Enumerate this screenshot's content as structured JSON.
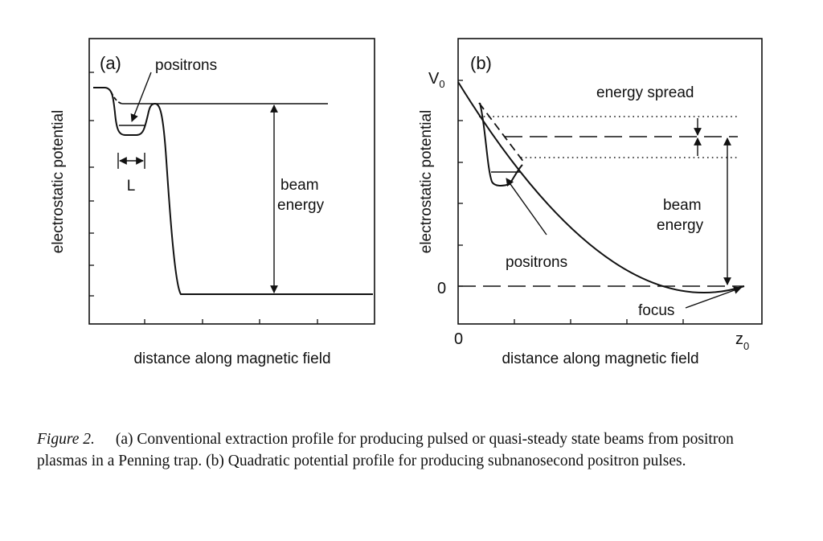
{
  "panels": {
    "a": {
      "label": "(a)",
      "ylabel": "electrostatic potential",
      "xlabel": "distance along magnetic field",
      "annotations": {
        "positrons": "positrons",
        "length": "L",
        "beam_energy_line1": "beam",
        "beam_energy_line2": "energy"
      }
    },
    "b": {
      "label": "(b)",
      "ylabel": "electrostatic potential",
      "xlabel": "distance along magnetic field",
      "y_top_tick": "V",
      "y_top_tick_sub": "0",
      "y_zero_tick": "0",
      "x_zero_tick": "0",
      "x_end_tick": "z",
      "x_end_tick_sub": "0",
      "annotations": {
        "energy_spread": "energy spread",
        "beam_energy_line1": "beam",
        "beam_energy_line2": "energy",
        "positrons": "positrons",
        "focus": "focus"
      }
    }
  },
  "caption": {
    "label": "Figure 2.",
    "text": "(a) Conventional extraction profile for producing pulsed or quasi-steady state beams from positron plasmas in a Penning trap. (b) Quadratic potential profile for producing subnanosecond positron pulses."
  }
}
